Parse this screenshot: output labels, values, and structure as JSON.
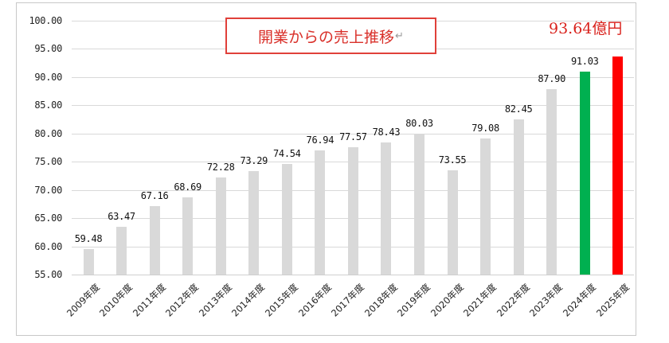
{
  "chart_data": {
    "type": "bar",
    "title": "開業からの売上推移",
    "title_mark": "↵",
    "highlight_annotation": "93.64億円",
    "xlabel": "",
    "ylabel": "",
    "ylim": [
      55,
      100
    ],
    "yticks": [
      "100.00",
      "95.00",
      "90.00",
      "85.00",
      "80.00",
      "75.00",
      "70.00",
      "65.00",
      "60.00",
      "55.00"
    ],
    "grid": true,
    "legend": "none",
    "categories": [
      "2009年度",
      "2010年度",
      "2011年度",
      "2012年度",
      "2013年度",
      "2014年度",
      "2015年度",
      "2016年度",
      "2017年度",
      "2018年度",
      "2019年度",
      "2020年度",
      "2021年度",
      "2022年度",
      "2023年度",
      "2024年度",
      "2025年度"
    ],
    "values": [
      59.48,
      63.47,
      67.16,
      68.69,
      72.28,
      73.29,
      74.54,
      76.94,
      77.57,
      78.43,
      80.03,
      73.55,
      79.08,
      82.45,
      87.9,
      91.03,
      93.64
    ],
    "data_labels": [
      "59.48",
      "63.47",
      "67.16",
      "68.69",
      "72.28",
      "73.29",
      "74.54",
      "76.94",
      "77.57",
      "78.43",
      "80.03",
      "73.55",
      "79.08",
      "82.45",
      "87.90",
      "91.03",
      ""
    ],
    "colors": {
      "default_bar": "#d9d9d9",
      "bar_2024": "#00b050",
      "bar_2025": "#ff0000",
      "title_border": "#e0403a",
      "title_text": "#d9302a",
      "annotation_text": "#d9221c",
      "gridline": "#d9d9d9"
    }
  }
}
